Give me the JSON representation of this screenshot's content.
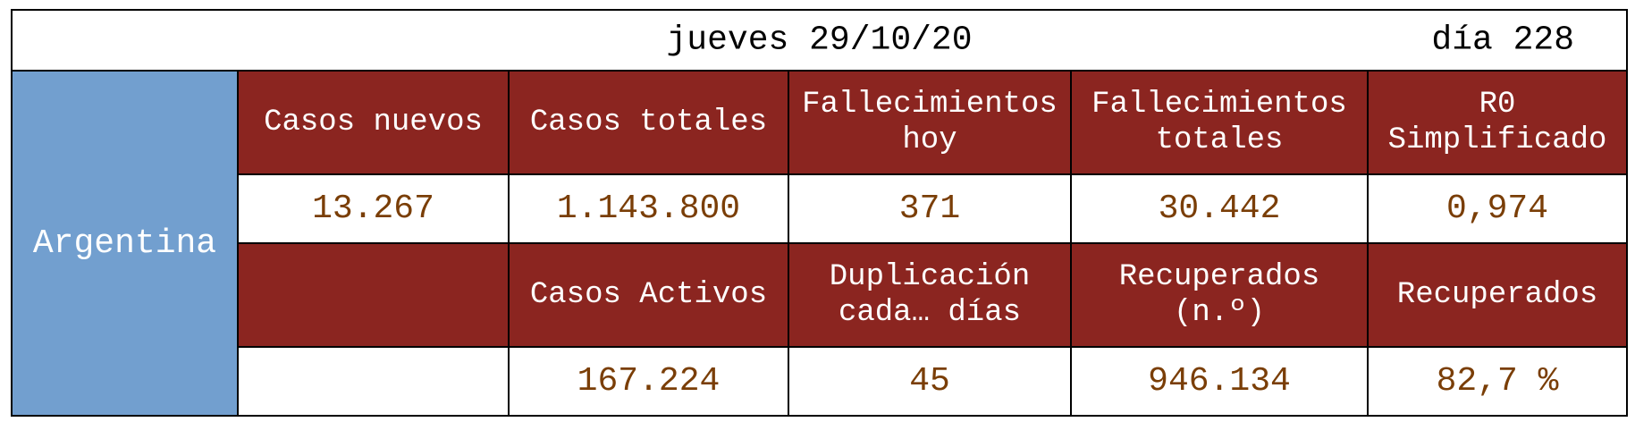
{
  "header": {
    "date": "jueves 29/10/20",
    "day": "día 228"
  },
  "country": "Argentina",
  "row1": {
    "headers": [
      "Casos nuevos",
      "Casos totales",
      "Fallecimientos\nhoy",
      "Fallecimientos\ntotales",
      "R0\nSimplificado"
    ],
    "values": [
      "13.267",
      "1.143.800",
      "371",
      "30.442",
      "0,974"
    ]
  },
  "row2": {
    "headers": [
      "",
      "Casos Activos",
      "Duplicación\ncada… días",
      "Recuperados\n(n.º)",
      "Recuperados"
    ],
    "values": [
      "",
      "167.224",
      "45",
      "946.134",
      "82,7 %"
    ]
  },
  "colors": {
    "header_bg": "#8b2520",
    "country_bg": "#729fcf",
    "value_text": "#7a3e07"
  }
}
